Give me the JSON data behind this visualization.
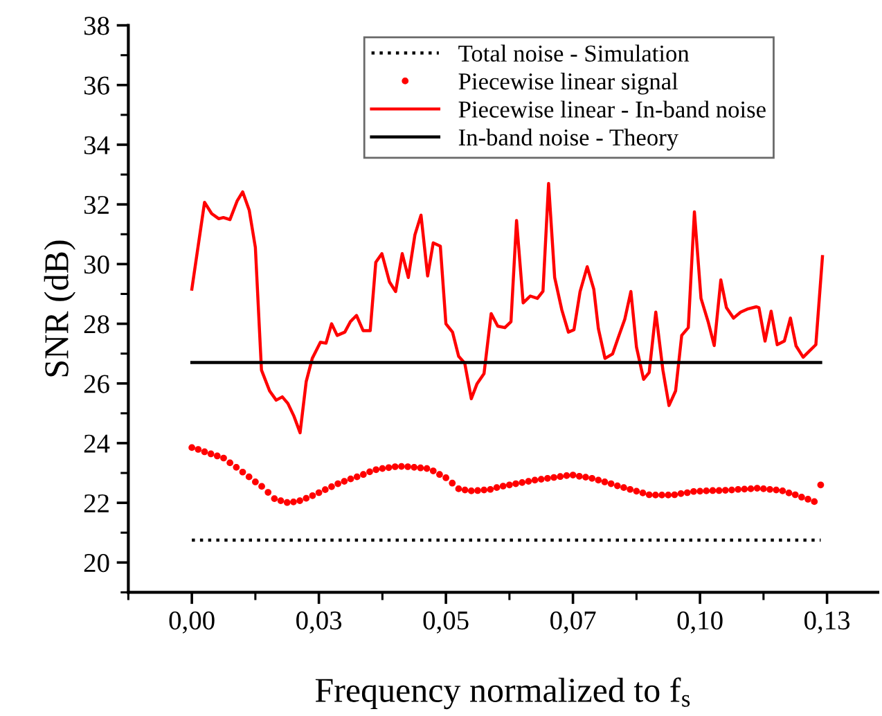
{
  "chart_data": {
    "type": "line",
    "xlabel": "Frequency normalized to f$_{s}$",
    "ylabel": "SNR (dB)",
    "xlim": [
      -0.0125,
      0.135
    ],
    "ylim": [
      19,
      38
    ],
    "xticks": [
      {
        "value": 0,
        "label": "0,00"
      },
      {
        "value": 0.025,
        "label": "0,03"
      },
      {
        "value": 0.05,
        "label": "0,05"
      },
      {
        "value": 0.075,
        "label": "0,07"
      },
      {
        "value": 0.1,
        "label": "0,10"
      },
      {
        "value": 0.125,
        "label": "0,13"
      }
    ],
    "yticks": [
      20,
      22,
      24,
      26,
      28,
      30,
      32,
      34,
      36,
      38
    ],
    "legend": "top right",
    "series": [
      {
        "name": "Total noise - Simulation",
        "type": "line",
        "line_style": "dotted",
        "color": "#000000",
        "x": [
          0,
          0.12375
        ],
        "values": [
          20.75,
          20.75
        ]
      },
      {
        "name": "Piecewise linear signal",
        "type": "scatter",
        "marker": "circle",
        "color": "#ff0000",
        "x": [
          0,
          0.00125,
          0.0025,
          0.00375,
          0.005,
          0.00625,
          0.0075,
          0.00875,
          0.01,
          0.01125,
          0.0125,
          0.01375,
          0.015,
          0.01625,
          0.0175,
          0.01875,
          0.02,
          0.02125,
          0.0225,
          0.02375,
          0.025,
          0.02625,
          0.0275,
          0.02875,
          0.03,
          0.03125,
          0.0325,
          0.03375,
          0.035,
          0.03625,
          0.0375,
          0.03875,
          0.04,
          0.04125,
          0.0425,
          0.04375,
          0.045,
          0.04625,
          0.0475,
          0.04875,
          0.05,
          0.05125,
          0.0525,
          0.05375,
          0.055,
          0.05625,
          0.0575,
          0.05875,
          0.06,
          0.06125,
          0.0625,
          0.06375,
          0.065,
          0.06625,
          0.0675,
          0.06875,
          0.07,
          0.07125,
          0.0725,
          0.07375,
          0.075,
          0.07625,
          0.0775,
          0.07875,
          0.08,
          0.08125,
          0.0825,
          0.08375,
          0.085,
          0.08625,
          0.0875,
          0.08875,
          0.09,
          0.09125,
          0.0925,
          0.09375,
          0.095,
          0.09625,
          0.0975,
          0.09875,
          0.1,
          0.10125,
          0.1025,
          0.10375,
          0.105,
          0.10625,
          0.1075,
          0.10875,
          0.11,
          0.11125,
          0.1125,
          0.11375,
          0.115,
          0.11625,
          0.1175,
          0.11875,
          0.12,
          0.12125,
          0.1225,
          0.12375
        ],
        "values": [
          23.85,
          23.79,
          23.71,
          23.64,
          23.57,
          23.5,
          23.34,
          23.19,
          23.03,
          22.87,
          22.7,
          22.55,
          22.35,
          22.14,
          22.07,
          22.01,
          22.03,
          22.07,
          22.15,
          22.24,
          22.34,
          22.44,
          22.54,
          22.64,
          22.72,
          22.8,
          22.87,
          22.95,
          23.04,
          23.11,
          23.15,
          23.18,
          23.21,
          23.22,
          23.21,
          23.19,
          23.17,
          23.15,
          23.07,
          22.95,
          22.84,
          22.66,
          22.47,
          22.43,
          22.4,
          22.41,
          22.43,
          22.45,
          22.51,
          22.56,
          22.6,
          22.64,
          22.68,
          22.72,
          22.76,
          22.79,
          22.82,
          22.85,
          22.88,
          22.91,
          22.93,
          22.89,
          22.86,
          22.82,
          22.76,
          22.7,
          22.64,
          22.57,
          22.51,
          22.45,
          22.39,
          22.33,
          22.27,
          22.26,
          22.26,
          22.26,
          22.27,
          22.31,
          22.34,
          22.38,
          22.39,
          22.4,
          22.41,
          22.41,
          22.42,
          22.43,
          22.45,
          22.46,
          22.47,
          22.49,
          22.47,
          22.45,
          22.43,
          22.4,
          22.33,
          22.27,
          22.19,
          22.12,
          22.04,
          22.6
        ]
      },
      {
        "name": "Piecewise linear - In-band noise",
        "type": "line",
        "line_style": "solid",
        "color": "#ff0000",
        "x": [
          0,
          0.0025,
          0.0039,
          0.0053,
          0.0062,
          0.0075,
          0.0089,
          0.01,
          0.0113,
          0.0125,
          0.0137,
          0.0153,
          0.0166,
          0.0178,
          0.0189,
          0.0201,
          0.0213,
          0.0225,
          0.0237,
          0.0253,
          0.0264,
          0.0275,
          0.0286,
          0.0301,
          0.0312,
          0.0324,
          0.0337,
          0.0351,
          0.0362,
          0.0374,
          0.0389,
          0.0401,
          0.0414,
          0.0426,
          0.0439,
          0.0451,
          0.0464,
          0.0475,
          0.0489,
          0.05,
          0.0513,
          0.0525,
          0.0537,
          0.055,
          0.0561,
          0.0575,
          0.0589,
          0.0602,
          0.0616,
          0.0628,
          0.0639,
          0.0652,
          0.0666,
          0.068,
          0.0691,
          0.0702,
          0.0714,
          0.0728,
          0.0741,
          0.0752,
          0.0764,
          0.0778,
          0.0791,
          0.08,
          0.0813,
          0.0828,
          0.0839,
          0.0852,
          0.0864,
          0.0875,
          0.0889,
          0.09,
          0.0913,
          0.0927,
          0.0939,
          0.0952,
          0.0964,
          0.0977,
          0.0989,
          0.1002,
          0.1016,
          0.1028,
          0.1041,
          0.1052,
          0.1066,
          0.108,
          0.1093,
          0.1111,
          0.1116,
          0.1128,
          0.114,
          0.1152,
          0.1166,
          0.1178,
          0.1189,
          0.1203,
          0.1228,
          0.1241
        ],
        "values": [
          29.16,
          32.07,
          31.69,
          31.52,
          31.56,
          31.49,
          32.11,
          32.42,
          31.8,
          30.56,
          26.45,
          25.75,
          25.44,
          25.55,
          25.33,
          24.9,
          24.35,
          26.06,
          26.84,
          27.38,
          27.35,
          28.0,
          27.61,
          27.72,
          28.07,
          28.28,
          27.77,
          27.77,
          30.06,
          30.35,
          29.4,
          29.08,
          30.35,
          29.55,
          30.98,
          31.64,
          29.6,
          30.71,
          30.6,
          28.0,
          27.72,
          26.91,
          26.68,
          25.49,
          25.98,
          26.33,
          28.34,
          27.92,
          27.87,
          28.07,
          31.46,
          28.7,
          28.93,
          28.85,
          29.09,
          32.7,
          29.55,
          28.47,
          27.72,
          27.8,
          29.08,
          29.91,
          29.16,
          27.84,
          26.84,
          26.99,
          27.53,
          28.15,
          29.08,
          27.22,
          26.14,
          26.37,
          28.39,
          26.45,
          25.26,
          25.75,
          27.61,
          27.87,
          31.75,
          28.85,
          28.07,
          27.27,
          29.47,
          28.54,
          28.19,
          28.39,
          28.49,
          28.57,
          28.54,
          27.42,
          28.42,
          27.3,
          27.42,
          28.19,
          27.26,
          26.88,
          27.3,
          30.25
        ]
      },
      {
        "name": "In-band noise - Theory",
        "type": "line",
        "line_style": "solid",
        "color": "#000000",
        "x": [
          0,
          0.12375
        ],
        "values": [
          26.7,
          26.7
        ]
      }
    ]
  }
}
